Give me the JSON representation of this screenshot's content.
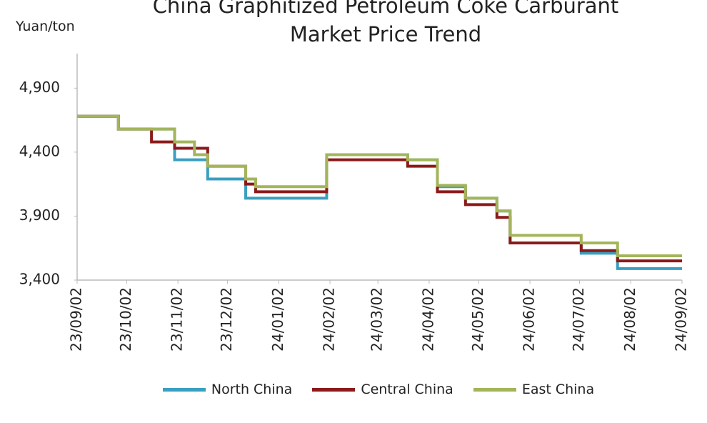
{
  "chart_data": {
    "type": "step-line",
    "title": "China Graphitized Petroleum Coke Carburant Market Price Trend",
    "y_axis_label": "Yuan/ton",
    "x": [
      "23/09/02",
      "23/09/27",
      "23/10/17",
      "23/10/31",
      "23/11/12",
      "23/11/20",
      "23/12/13",
      "23/12/19",
      "24/01/31",
      "24/03/20",
      "24/04/07",
      "24/04/24",
      "24/05/13",
      "24/05/21",
      "24/07/03",
      "24/07/25",
      "24/09/02"
    ],
    "series": [
      {
        "name": "North China",
        "color": "#3a9fc0",
        "values": [
          4680,
          4580,
          4580,
          4340,
          4340,
          4190,
          4040,
          4040,
          4380,
          4340,
          4130,
          4040,
          3940,
          3690,
          3610,
          3490,
          3490
        ]
      },
      {
        "name": "Central China",
        "color": "#8b1a1a",
        "values": [
          4680,
          4580,
          4480,
          4430,
          4430,
          4290,
          4150,
          4090,
          4340,
          4290,
          4090,
          3990,
          3890,
          3690,
          3630,
          3550,
          3550
        ]
      },
      {
        "name": "East China",
        "color": "#a3b55a",
        "values": [
          4680,
          4580,
          4580,
          4480,
          4380,
          4290,
          4190,
          4130,
          4380,
          4340,
          4140,
          4040,
          3940,
          3750,
          3690,
          3590,
          3590
        ]
      }
    ],
    "xlim": [
      "23/09/02",
      "24/09/02"
    ],
    "xticks": [
      "23/09/02",
      "23/10/02",
      "23/11/02",
      "23/12/02",
      "24/01/02",
      "24/02/02",
      "24/03/02",
      "24/04/02",
      "24/05/02",
      "24/06/02",
      "24/07/02",
      "24/08/02",
      "24/09/02"
    ],
    "ylim": [
      3400,
      5170
    ],
    "yticks": [
      {
        "value": 3400,
        "label": "3,400"
      },
      {
        "value": 3900,
        "label": "3,900"
      },
      {
        "value": 4400,
        "label": "4,400"
      },
      {
        "value": 4900,
        "label": "4,900"
      }
    ],
    "grid": false
  }
}
